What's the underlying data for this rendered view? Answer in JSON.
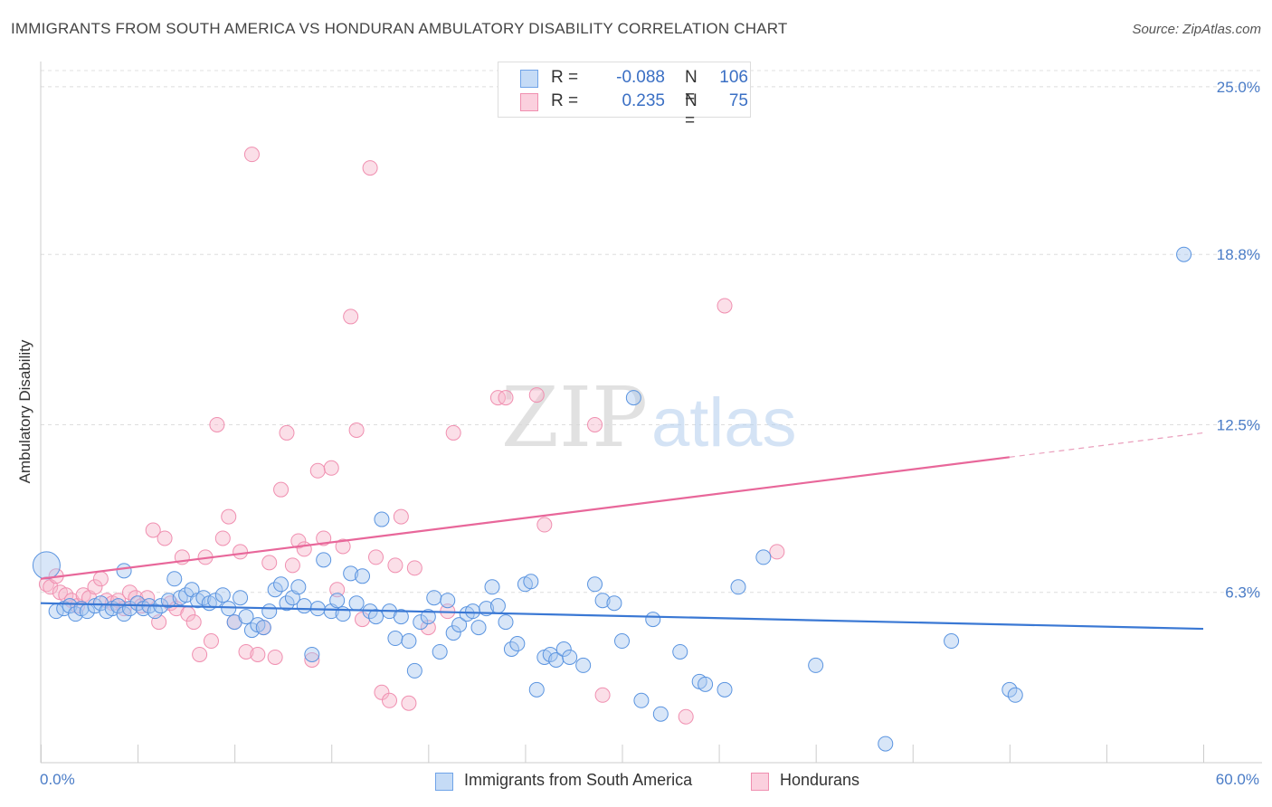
{
  "title": "IMMIGRANTS FROM SOUTH AMERICA VS HONDURAN AMBULATORY DISABILITY CORRELATION CHART",
  "source": "Source: ZipAtlas.com",
  "watermark": {
    "zip": "ZIP",
    "atlas": "atlas"
  },
  "legend_top": [
    {
      "r_label": "R =",
      "r_value": "-0.088",
      "n_label": "N =",
      "n_value": "106",
      "color": "#6fa3e8"
    },
    {
      "r_label": "R =",
      "r_value": "0.235",
      "n_label": "N =",
      "n_value": "75",
      "color": "#f08fb0"
    }
  ],
  "legend_bottom": [
    {
      "label": "Immigrants from South America",
      "color": "#6fa3e8"
    },
    {
      "label": "Hondurans",
      "color": "#f08fb0"
    }
  ],
  "chart_data": {
    "type": "scatter",
    "title": "IMMIGRANTS FROM SOUTH AMERICA VS HONDURAN AMBULATORY DISABILITY CORRELATION CHART",
    "xlabel": "",
    "ylabel": "Ambulatory Disability",
    "xlim": [
      0,
      60
    ],
    "ylim": [
      0,
      25.6
    ],
    "x_tick_labels": [
      "0.0%",
      "60.0%"
    ],
    "y_ticks": [
      6.3,
      12.5,
      18.8,
      25.0
    ],
    "y_tick_labels": [
      "6.3%",
      "12.5%",
      "18.8%",
      "25.0%"
    ],
    "series": [
      {
        "name": "Immigrants from South America",
        "color": "#6fa3e8",
        "trend": {
          "x0": 0,
          "y0": 5.9,
          "x1": 60,
          "y1": 4.95
        },
        "points": [
          [
            0.3,
            7.3
          ],
          [
            0.8,
            5.6
          ],
          [
            1.2,
            5.7
          ],
          [
            1.5,
            5.8
          ],
          [
            1.8,
            5.5
          ],
          [
            2.1,
            5.7
          ],
          [
            2.4,
            5.6
          ],
          [
            2.8,
            5.8
          ],
          [
            3.1,
            5.9
          ],
          [
            3.4,
            5.6
          ],
          [
            3.7,
            5.7
          ],
          [
            4.0,
            5.8
          ],
          [
            4.3,
            5.5
          ],
          [
            4.6,
            5.7
          ],
          [
            5.0,
            5.9
          ],
          [
            5.3,
            5.7
          ],
          [
            5.6,
            5.8
          ],
          [
            5.9,
            5.6
          ],
          [
            6.2,
            5.8
          ],
          [
            6.6,
            6.0
          ],
          [
            6.9,
            6.8
          ],
          [
            7.2,
            6.1
          ],
          [
            7.5,
            6.2
          ],
          [
            7.8,
            6.4
          ],
          [
            8.1,
            6.0
          ],
          [
            8.4,
            6.1
          ],
          [
            8.7,
            5.9
          ],
          [
            9.0,
            6.0
          ],
          [
            9.4,
            6.2
          ],
          [
            9.7,
            5.7
          ],
          [
            10.0,
            5.2
          ],
          [
            10.3,
            6.1
          ],
          [
            10.6,
            5.4
          ],
          [
            10.9,
            4.9
          ],
          [
            11.2,
            5.1
          ],
          [
            11.5,
            5.0
          ],
          [
            11.8,
            5.6
          ],
          [
            12.1,
            6.4
          ],
          [
            12.4,
            6.6
          ],
          [
            12.7,
            5.9
          ],
          [
            13.0,
            6.1
          ],
          [
            13.3,
            6.5
          ],
          [
            13.6,
            5.8
          ],
          [
            14.0,
            4.0
          ],
          [
            14.3,
            5.7
          ],
          [
            14.6,
            7.5
          ],
          [
            15.0,
            5.6
          ],
          [
            15.3,
            6.0
          ],
          [
            15.6,
            5.5
          ],
          [
            16.0,
            7.0
          ],
          [
            16.3,
            5.9
          ],
          [
            16.6,
            6.9
          ],
          [
            17.0,
            5.6
          ],
          [
            17.3,
            5.4
          ],
          [
            17.6,
            9.0
          ],
          [
            18.0,
            5.6
          ],
          [
            18.3,
            4.6
          ],
          [
            18.6,
            5.4
          ],
          [
            19.0,
            4.5
          ],
          [
            19.3,
            3.4
          ],
          [
            19.6,
            5.2
          ],
          [
            20.0,
            5.4
          ],
          [
            20.3,
            6.1
          ],
          [
            20.6,
            4.1
          ],
          [
            21.0,
            6.0
          ],
          [
            21.3,
            4.8
          ],
          [
            21.6,
            5.1
          ],
          [
            22.0,
            5.5
          ],
          [
            22.3,
            5.6
          ],
          [
            22.6,
            5.0
          ],
          [
            23.0,
            5.7
          ],
          [
            23.3,
            6.5
          ],
          [
            23.6,
            5.8
          ],
          [
            24.0,
            5.2
          ],
          [
            24.3,
            4.2
          ],
          [
            24.6,
            4.4
          ],
          [
            25.0,
            6.6
          ],
          [
            25.3,
            6.7
          ],
          [
            25.6,
            2.7
          ],
          [
            26.0,
            3.9
          ],
          [
            26.3,
            4.0
          ],
          [
            26.6,
            3.8
          ],
          [
            27.0,
            4.2
          ],
          [
            27.3,
            3.9
          ],
          [
            28.0,
            3.6
          ],
          [
            28.6,
            6.6
          ],
          [
            29.0,
            6.0
          ],
          [
            29.6,
            5.9
          ],
          [
            30.0,
            4.5
          ],
          [
            30.6,
            13.5
          ],
          [
            31.0,
            2.3
          ],
          [
            31.6,
            5.3
          ],
          [
            32.0,
            1.8
          ],
          [
            33.0,
            4.1
          ],
          [
            34.0,
            3.0
          ],
          [
            34.3,
            2.9
          ],
          [
            35.3,
            2.7
          ],
          [
            36.0,
            6.5
          ],
          [
            37.3,
            7.6
          ],
          [
            40.0,
            3.6
          ],
          [
            43.6,
            0.7
          ],
          [
            47.0,
            4.5
          ],
          [
            50.0,
            2.7
          ],
          [
            50.3,
            2.5
          ],
          [
            59.0,
            18.8
          ],
          [
            4.3,
            7.1
          ]
        ]
      },
      {
        "name": "Hondurans",
        "color": "#f08fb0",
        "trend": {
          "x0": 0,
          "y0": 6.8,
          "x1": 50,
          "y1": 11.3,
          "dash_to_x": 60,
          "dash_to_y": 12.2
        },
        "points": [
          [
            0.3,
            6.6
          ],
          [
            0.5,
            6.5
          ],
          [
            0.8,
            6.9
          ],
          [
            1.0,
            6.3
          ],
          [
            1.3,
            6.2
          ],
          [
            1.6,
            6.0
          ],
          [
            1.9,
            5.8
          ],
          [
            2.2,
            6.2
          ],
          [
            2.5,
            6.1
          ],
          [
            2.8,
            6.5
          ],
          [
            3.1,
            6.8
          ],
          [
            3.4,
            6.0
          ],
          [
            3.7,
            5.9
          ],
          [
            4.0,
            6.0
          ],
          [
            4.3,
            5.7
          ],
          [
            4.6,
            6.3
          ],
          [
            4.9,
            6.1
          ],
          [
            5.2,
            5.8
          ],
          [
            5.5,
            6.1
          ],
          [
            5.8,
            8.6
          ],
          [
            6.1,
            5.2
          ],
          [
            6.4,
            8.3
          ],
          [
            6.7,
            5.9
          ],
          [
            7.0,
            5.7
          ],
          [
            7.3,
            7.6
          ],
          [
            7.6,
            5.5
          ],
          [
            7.9,
            5.2
          ],
          [
            8.2,
            4.0
          ],
          [
            8.5,
            7.6
          ],
          [
            8.8,
            4.5
          ],
          [
            9.1,
            12.5
          ],
          [
            9.4,
            8.3
          ],
          [
            9.7,
            9.1
          ],
          [
            10.0,
            5.2
          ],
          [
            10.3,
            7.8
          ],
          [
            10.6,
            4.1
          ],
          [
            10.9,
            22.5
          ],
          [
            11.2,
            4.0
          ],
          [
            11.5,
            5.0
          ],
          [
            11.8,
            7.4
          ],
          [
            12.1,
            3.9
          ],
          [
            12.4,
            10.1
          ],
          [
            12.7,
            12.2
          ],
          [
            13.0,
            7.3
          ],
          [
            13.3,
            8.2
          ],
          [
            13.6,
            7.9
          ],
          [
            14.0,
            3.8
          ],
          [
            14.3,
            10.8
          ],
          [
            14.6,
            8.3
          ],
          [
            15.0,
            10.9
          ],
          [
            15.3,
            6.4
          ],
          [
            15.6,
            8.0
          ],
          [
            16.0,
            16.5
          ],
          [
            16.3,
            12.3
          ],
          [
            16.6,
            5.3
          ],
          [
            17.0,
            22.0
          ],
          [
            17.3,
            7.6
          ],
          [
            17.6,
            2.6
          ],
          [
            18.0,
            2.3
          ],
          [
            18.3,
            7.3
          ],
          [
            18.6,
            9.1
          ],
          [
            19.0,
            2.2
          ],
          [
            19.3,
            7.2
          ],
          [
            20.0,
            5.0
          ],
          [
            21.0,
            5.6
          ],
          [
            21.3,
            12.2
          ],
          [
            23.6,
            13.5
          ],
          [
            24.0,
            13.5
          ],
          [
            25.6,
            13.6
          ],
          [
            26.0,
            8.8
          ],
          [
            28.6,
            12.5
          ],
          [
            29.0,
            2.5
          ],
          [
            33.3,
            1.7
          ],
          [
            35.3,
            16.9
          ],
          [
            38.0,
            7.8
          ]
        ]
      }
    ]
  }
}
